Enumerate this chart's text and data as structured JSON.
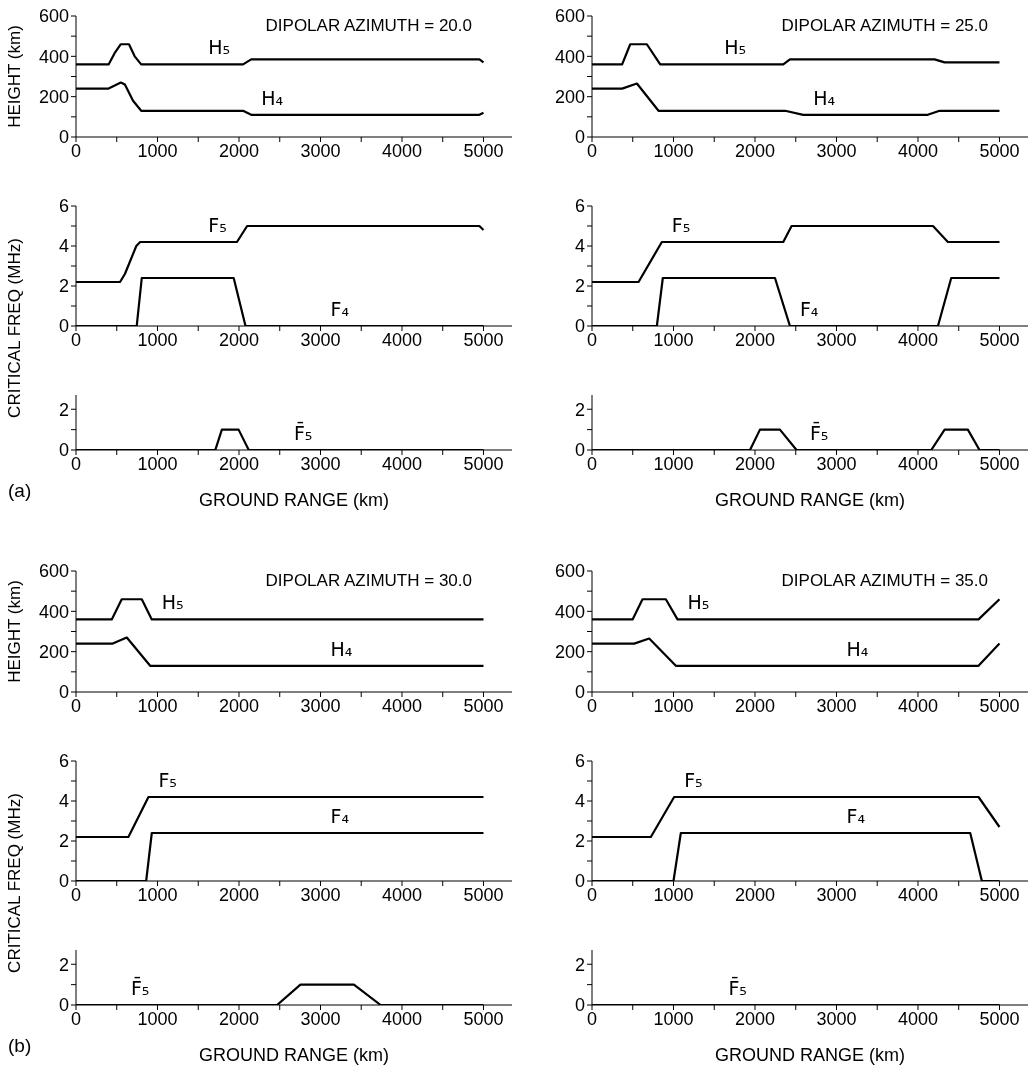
{
  "chart_data": [
    {
      "type": "line",
      "title": "DIPOLAR AZIMUTH = 20.0",
      "ylabel": "HEIGHT (km)",
      "marker": "none",
      "xlim": [
        0,
        5350
      ],
      "xticks": [
        0,
        {
          "value": 500,
          "label": null
        },
        1000,
        {
          "value": 1500,
          "label": null
        },
        2000,
        {
          "value": 2500,
          "label": null
        },
        3000,
        {
          "value": 3500,
          "label": null
        },
        4000,
        {
          "value": 4500,
          "label": null
        },
        5000
      ],
      "ylim": [
        0,
        600
      ],
      "yticks": [
        0,
        {
          "value": 100,
          "label": null
        },
        200,
        {
          "value": 300,
          "label": null
        },
        400,
        {
          "value": 500,
          "label": null
        },
        600
      ],
      "series": [
        {
          "name": "H₅",
          "color": "#000000",
          "x": [
            0,
            400,
            480,
            550,
            650,
            720,
            800,
            1500,
            2050,
            2150,
            3000,
            4000,
            4950,
            5000
          ],
          "values": [
            360,
            360,
            420,
            460,
            460,
            400,
            360,
            360,
            360,
            385,
            385,
            385,
            385,
            370
          ]
        },
        {
          "name": "H₄",
          "color": "#000000",
          "x": [
            0,
            400,
            550,
            600,
            700,
            800,
            1500,
            2050,
            2150,
            3000,
            4000,
            4950,
            5000
          ],
          "values": [
            240,
            240,
            270,
            260,
            180,
            130,
            130,
            130,
            110,
            110,
            110,
            110,
            120
          ]
        }
      ]
    },
    {
      "type": "line",
      "ylabel": "CRITICAL FREQ (MHz)",
      "marker": "none",
      "xlim": [
        0,
        5350
      ],
      "xticks": [
        0,
        {
          "value": 500,
          "label": null
        },
        1000,
        {
          "value": 1500,
          "label": null
        },
        2000,
        {
          "value": 2500,
          "label": null
        },
        3000,
        {
          "value": 3500,
          "label": null
        },
        4000,
        {
          "value": 4500,
          "label": null
        },
        5000
      ],
      "ylim": [
        0,
        6
      ],
      "yticks": [
        0,
        {
          "value": 1,
          "label": null
        },
        2,
        {
          "value": 3,
          "label": null
        },
        4,
        {
          "value": 5,
          "label": null
        },
        6
      ],
      "series": [
        {
          "name": "F₅",
          "color": "#000000",
          "x": [
            0,
            540,
            600,
            740,
            787,
            1500,
            1975,
            2100,
            3000,
            4000,
            4950,
            5000
          ],
          "values": [
            2.2,
            2.2,
            2.6,
            4.0,
            4.2,
            4.2,
            4.2,
            5.0,
            5.0,
            5.0,
            5.0,
            4.8
          ]
        },
        {
          "name": "F₄",
          "color": "#000000",
          "x": [
            0,
            745,
            807,
            1500,
            1935,
            2080,
            3000,
            4000,
            5000
          ],
          "values": [
            0,
            0,
            2.4,
            2.4,
            2.4,
            0,
            0,
            0,
            0
          ]
        }
      ]
    },
    {
      "type": "line",
      "xlabel": "GROUND RANGE (km)",
      "annotations": [
        "(a)"
      ],
      "marker": "none",
      "xlim": [
        0,
        5350
      ],
      "xticks": [
        0,
        {
          "value": 500,
          "label": null
        },
        1000,
        {
          "value": 1500,
          "label": null
        },
        2000,
        {
          "value": 2500,
          "label": null
        },
        3000,
        {
          "value": 3500,
          "label": null
        },
        4000,
        {
          "value": 4500,
          "label": null
        },
        5000
      ],
      "ylim": [
        0,
        2.7
      ],
      "yticks": [
        0,
        {
          "value": 1,
          "label": null
        },
        2
      ],
      "series": [
        {
          "name": "F̄₅",
          "color": "#000000",
          "x": [
            0,
            1000,
            1709,
            1790,
            1995,
            2120,
            3000,
            4000,
            5000
          ],
          "values": [
            0,
            0,
            0,
            1,
            1,
            0,
            0,
            0,
            0
          ]
        }
      ]
    },
    {
      "type": "line",
      "title": "DIPOLAR AZIMUTH = 25.0",
      "marker": "none",
      "xlim": [
        0,
        5350
      ],
      "xticks": [
        0,
        {
          "value": 500,
          "label": null
        },
        1000,
        {
          "value": 1500,
          "label": null
        },
        2000,
        {
          "value": 2500,
          "label": null
        },
        3000,
        {
          "value": 3500,
          "label": null
        },
        4000,
        {
          "value": 4500,
          "label": null
        },
        5000
      ],
      "ylim": [
        0,
        600
      ],
      "yticks": [
        0,
        {
          "value": 100,
          "label": null
        },
        200,
        {
          "value": 300,
          "label": null
        },
        400,
        {
          "value": 500,
          "label": null
        },
        600
      ],
      "series": [
        {
          "name": "H₅",
          "color": "#000000",
          "x": [
            0,
            370,
            469,
            673,
            837,
            1500,
            2347,
            2429,
            3000,
            4000,
            4204,
            4327,
            5000
          ],
          "values": [
            360,
            360,
            460,
            460,
            360,
            360,
            360,
            385,
            385,
            385,
            385,
            370,
            370
          ]
        },
        {
          "name": "H₄",
          "color": "#000000",
          "x": [
            0,
            370,
            551,
            816,
            1500,
            2370,
            2592,
            3000,
            4120,
            4265,
            5000
          ],
          "values": [
            240,
            240,
            265,
            130,
            130,
            130,
            110,
            110,
            110,
            130,
            130
          ]
        }
      ]
    },
    {
      "type": "line",
      "marker": "none",
      "xlim": [
        0,
        5350
      ],
      "xticks": [
        0,
        {
          "value": 500,
          "label": null
        },
        1000,
        {
          "value": 1500,
          "label": null
        },
        2000,
        {
          "value": 2500,
          "label": null
        },
        3000,
        {
          "value": 3500,
          "label": null
        },
        4000,
        {
          "value": 4500,
          "label": null
        },
        5000
      ],
      "ylim": [
        0,
        6
      ],
      "yticks": [
        0,
        {
          "value": 1,
          "label": null
        },
        2,
        {
          "value": 3,
          "label": null
        },
        4,
        {
          "value": 5,
          "label": null
        },
        6
      ],
      "series": [
        {
          "name": "F₅",
          "color": "#000000",
          "x": [
            0,
            571,
            857,
            1500,
            2347,
            2449,
            3000,
            4184,
            4367,
            5000
          ],
          "values": [
            2.2,
            2.2,
            4.2,
            4.2,
            4.2,
            5.0,
            5.0,
            5.0,
            4.2,
            4.2
          ]
        },
        {
          "name": "F₄",
          "color": "#000000",
          "x": [
            0,
            796,
            869,
            1500,
            2245,
            2429,
            3000,
            4245,
            4408,
            5000
          ],
          "values": [
            0,
            0,
            2.4,
            2.4,
            2.4,
            0,
            0,
            0,
            2.4,
            2.4
          ]
        }
      ]
    },
    {
      "type": "line",
      "xlabel": "GROUND RANGE (km)",
      "marker": "none",
      "xlim": [
        0,
        5350
      ],
      "xticks": [
        0,
        {
          "value": 500,
          "label": null
        },
        1000,
        {
          "value": 1500,
          "label": null
        },
        2000,
        {
          "value": 2500,
          "label": null
        },
        3000,
        {
          "value": 3500,
          "label": null
        },
        4000,
        {
          "value": 4500,
          "label": null
        },
        5000
      ],
      "ylim": [
        0,
        2.7
      ],
      "yticks": [
        0,
        {
          "value": 1,
          "label": null
        },
        2
      ],
      "series": [
        {
          "name": "F̄₅",
          "color": "#000000",
          "x": [
            0,
            1000,
            1939,
            2061,
            2306,
            2510,
            3000,
            4163,
            4327,
            4612,
            4755,
            5000
          ],
          "values": [
            0,
            0,
            0,
            1,
            1,
            0,
            0,
            0,
            1,
            1,
            0,
            0
          ]
        }
      ]
    },
    {
      "type": "line",
      "title": "DIPOLAR AZIMUTH = 30.0",
      "ylabel": "HEIGHT (km)",
      "marker": "none",
      "xlim": [
        0,
        5350
      ],
      "xticks": [
        0,
        {
          "value": 500,
          "label": null
        },
        1000,
        {
          "value": 1500,
          "label": null
        },
        2000,
        {
          "value": 2500,
          "label": null
        },
        3000,
        {
          "value": 3500,
          "label": null
        },
        4000,
        {
          "value": 4500,
          "label": null
        },
        5000
      ],
      "ylim": [
        0,
        600
      ],
      "yticks": [
        0,
        {
          "value": 100,
          "label": null
        },
        200,
        {
          "value": 300,
          "label": null
        },
        400,
        {
          "value": 500,
          "label": null
        },
        600
      ],
      "series": [
        {
          "name": "H₅",
          "color": "#000000",
          "x": [
            0,
            439,
            561,
            807,
            930,
            1500,
            3000,
            4000,
            5000
          ],
          "values": [
            360,
            360,
            460,
            460,
            360,
            360,
            360,
            360,
            360
          ]
        },
        {
          "name": "H₄",
          "color": "#000000",
          "x": [
            0,
            451,
            623,
            910,
            1500,
            3000,
            4000,
            5000
          ],
          "values": [
            240,
            240,
            270,
            130,
            130,
            130,
            130,
            130
          ]
        }
      ]
    },
    {
      "type": "line",
      "ylabel": "CRITICAL FREQ (MHz)",
      "marker": "none",
      "xlim": [
        0,
        5350
      ],
      "xticks": [
        0,
        {
          "value": 500,
          "label": null
        },
        1000,
        {
          "value": 1500,
          "label": null
        },
        2000,
        {
          "value": 2500,
          "label": null
        },
        3000,
        {
          "value": 3500,
          "label": null
        },
        4000,
        {
          "value": 4500,
          "label": null
        },
        5000
      ],
      "ylim": [
        0,
        6
      ],
      "yticks": [
        0,
        {
          "value": 1,
          "label": null
        },
        2,
        {
          "value": 3,
          "label": null
        },
        4,
        {
          "value": 5,
          "label": null
        },
        6
      ],
      "series": [
        {
          "name": "F₅",
          "color": "#000000",
          "x": [
            0,
            643,
            889,
            1500,
            3000,
            4000,
            5000
          ],
          "values": [
            2.2,
            2.2,
            4.2,
            4.2,
            4.2,
            4.2,
            4.2
          ]
        },
        {
          "name": "F₄",
          "color": "#000000",
          "x": [
            0,
            861,
            930,
            1500,
            3000,
            4000,
            5000
          ],
          "values": [
            0,
            0,
            2.4,
            2.4,
            2.4,
            2.4,
            2.4
          ]
        }
      ]
    },
    {
      "type": "line",
      "xlabel": "GROUND RANGE (km)",
      "annotations": [
        "(b)"
      ],
      "marker": "none",
      "xlim": [
        0,
        5350
      ],
      "xticks": [
        0,
        {
          "value": 500,
          "label": null
        },
        1000,
        {
          "value": 1500,
          "label": null
        },
        2000,
        {
          "value": 2500,
          "label": null
        },
        3000,
        {
          "value": 3500,
          "label": null
        },
        4000,
        {
          "value": 4500,
          "label": null
        },
        5000
      ],
      "ylim": [
        0,
        2.7
      ],
      "yticks": [
        0,
        {
          "value": 1,
          "label": null
        },
        2
      ],
      "series": [
        {
          "name": "F̄₅",
          "color": "#000000",
          "x": [
            0,
            1000,
            2467,
            2754,
            3410,
            3738,
            4000,
            5000
          ],
          "values": [
            0,
            0,
            0,
            1,
            1,
            0,
            0,
            0
          ]
        }
      ]
    },
    {
      "type": "line",
      "title": "DIPOLAR AZIMUTH = 35.0",
      "marker": "none",
      "xlim": [
        0,
        5350
      ],
      "xticks": [
        0,
        {
          "value": 500,
          "label": null
        },
        1000,
        {
          "value": 1500,
          "label": null
        },
        2000,
        {
          "value": 2500,
          "label": null
        },
        3000,
        {
          "value": 3500,
          "label": null
        },
        4000,
        {
          "value": 4500,
          "label": null
        },
        5000
      ],
      "ylim": [
        0,
        600
      ],
      "yticks": [
        0,
        {
          "value": 100,
          "label": null
        },
        200,
        {
          "value": 300,
          "label": null
        },
        400,
        {
          "value": 500,
          "label": null
        },
        600
      ],
      "series": [
        {
          "name": "H₅",
          "color": "#000000",
          "x": [
            0,
            498,
            620,
            906,
            1049,
            2000,
            3000,
            4743,
            5000
          ],
          "values": [
            360,
            360,
            460,
            460,
            360,
            360,
            360,
            360,
            460
          ]
        },
        {
          "name": "H₄",
          "color": "#000000",
          "x": [
            0,
            518,
            702,
            1029,
            2000,
            3000,
            4743,
            5000
          ],
          "values": [
            240,
            240,
            265,
            130,
            130,
            130,
            130,
            240
          ]
        }
      ]
    },
    {
      "type": "line",
      "marker": "none",
      "xlim": [
        0,
        5350
      ],
      "xticks": [
        0,
        {
          "value": 500,
          "label": null
        },
        1000,
        {
          "value": 1500,
          "label": null
        },
        2000,
        {
          "value": 2500,
          "label": null
        },
        3000,
        {
          "value": 3500,
          "label": null
        },
        4000,
        {
          "value": 4500,
          "label": null
        },
        5000
      ],
      "ylim": [
        0,
        6
      ],
      "yticks": [
        0,
        {
          "value": 1,
          "label": null
        },
        2,
        {
          "value": 3,
          "label": null
        },
        4,
        {
          "value": 5,
          "label": null
        },
        6
      ],
      "series": [
        {
          "name": "F₅",
          "color": "#000000",
          "x": [
            0,
            722,
            1008,
            2000,
            3000,
            4743,
            5000
          ],
          "values": [
            2.2,
            2.2,
            4.2,
            4.2,
            4.2,
            4.2,
            2.7
          ]
        },
        {
          "name": "F₄",
          "color": "#000000",
          "x": [
            0,
            1000,
            1090,
            2000,
            3000,
            4641,
            4784,
            5000
          ],
          "values": [
            0,
            0,
            2.4,
            2.4,
            2.4,
            2.4,
            0,
            0
          ]
        }
      ]
    },
    {
      "type": "line",
      "xlabel": "GROUND RANGE (km)",
      "marker": "none",
      "xlim": [
        0,
        5350
      ],
      "xticks": [
        0,
        {
          "value": 500,
          "label": null
        },
        1000,
        {
          "value": 1500,
          "label": null
        },
        2000,
        {
          "value": 2500,
          "label": null
        },
        3000,
        {
          "value": 3500,
          "label": null
        },
        4000,
        {
          "value": 4500,
          "label": null
        },
        5000
      ],
      "ylim": [
        0,
        2.7
      ],
      "yticks": [
        0,
        {
          "value": 1,
          "label": null
        },
        2
      ],
      "series": [
        {
          "name": "F̄₅",
          "color": "#000000",
          "x": [
            0,
            1000,
            2000,
            3000,
            4000,
            5000
          ],
          "values": [
            0,
            0,
            0,
            0,
            0,
            0
          ]
        }
      ]
    }
  ]
}
